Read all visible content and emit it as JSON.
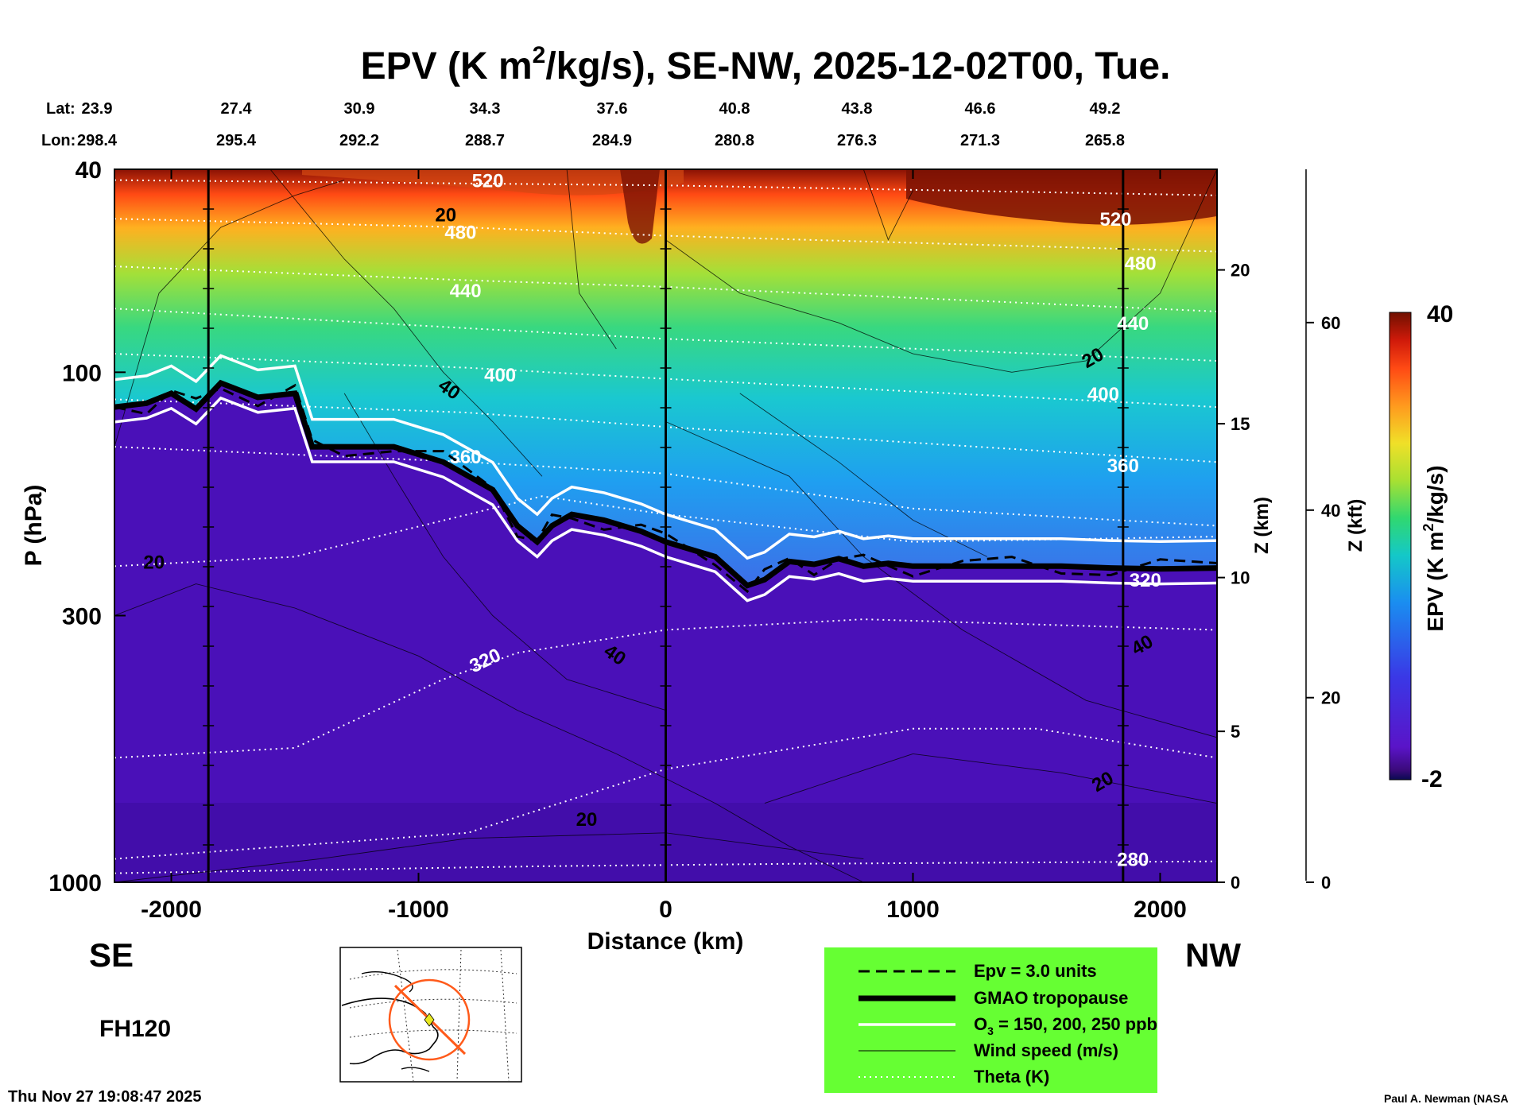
{
  "chart_data": {
    "type": "heatmap",
    "title_main": "EPV (K m",
    "title_unit_sup": "2",
    "title_rest": "/kg/s), SE-NW, 2025-12-02T00, Tue.",
    "lat_label": "Lat:",
    "lon_label": "Lon:",
    "lat_values": [
      "23.9",
      "27.4",
      "30.9",
      "34.3",
      "37.6",
      "40.8",
      "43.8",
      "46.6",
      "49.2"
    ],
    "lon_values": [
      "298.4",
      "295.4",
      "292.2",
      "288.7",
      "284.9",
      "280.8",
      "276.3",
      "271.3",
      "265.8"
    ],
    "xlabel": "Distance (km)",
    "xlim": [
      -2230,
      2230
    ],
    "x_ticks": [
      -2000,
      -1000,
      0,
      1000,
      2000
    ],
    "x_tick_labels": [
      "-2000",
      "-1000",
      "0",
      "1000",
      "2000"
    ],
    "ylabel": "P (hPa)",
    "ylim": [
      1000,
      40
    ],
    "y_ticks": [
      40,
      100,
      300,
      1000
    ],
    "y_tick_labels": [
      "40",
      "100",
      "300",
      "1000"
    ],
    "z_km_label": "Z (km)",
    "z_km_ticks": [
      "20",
      "15",
      "10",
      "5",
      "0"
    ],
    "z_km_values": [
      20,
      15,
      10,
      5,
      0
    ],
    "z_kft_label": "Z (kft)",
    "z_kft_ticks": [
      "60",
      "40",
      "20",
      "0"
    ],
    "z_kft_values": [
      60,
      40,
      20,
      0
    ],
    "vertical_sections_km": [
      -1850,
      0,
      1850
    ],
    "colorbar": {
      "label_main": "EPV (K m",
      "label_sup": "2",
      "label_rest": "/kg/s)",
      "min": -2,
      "max": 40,
      "min_label": "-2",
      "max_label": "40"
    },
    "theta_contours": [
      {
        "label": "520",
        "km": -720,
        "hpa": 42
      },
      {
        "label": "480",
        "km": -830,
        "hpa": 53
      },
      {
        "label": "440",
        "km": -810,
        "hpa": 69
      },
      {
        "label": "400",
        "km": -670,
        "hpa": 101
      },
      {
        "label": "360",
        "km": -810,
        "hpa": 146
      },
      {
        "label": "320",
        "km": -720,
        "hpa": 365
      },
      {
        "label": "520",
        "km": 1820,
        "hpa": 50
      },
      {
        "label": "480",
        "km": 1920,
        "hpa": 61
      },
      {
        "label": "440",
        "km": 1890,
        "hpa": 80
      },
      {
        "label": "400",
        "km": 1770,
        "hpa": 110
      },
      {
        "label": "360",
        "km": 1850,
        "hpa": 152
      },
      {
        "label": "320",
        "km": 1940,
        "hpa": 255
      },
      {
        "label": "280",
        "km": 1890,
        "hpa": 900
      }
    ],
    "wind_contours": [
      {
        "label": "20",
        "km": -890,
        "hpa": 49
      },
      {
        "label": "20",
        "km": -2070,
        "hpa": 235
      },
      {
        "label": "40",
        "km": -890,
        "hpa": 107
      },
      {
        "label": "40",
        "km": -220,
        "hpa": 355
      },
      {
        "label": "20",
        "km": -320,
        "hpa": 750
      },
      {
        "label": "20",
        "km": 1740,
        "hpa": 93
      },
      {
        "label": "40",
        "km": 1940,
        "hpa": 340
      },
      {
        "label": "20",
        "km": 1780,
        "hpa": 630
      }
    ],
    "legend": {
      "items": [
        "Epv = 3.0 units",
        "GMAO tropopause",
        "O3 = 150, 200, 250 ppb",
        "Wind speed (m/s)",
        "Theta (K)"
      ],
      "o3_prefix": "O",
      "o3_sub": "3",
      "o3_rest": " = 150, 200, 250 ppb",
      "background": "#66ff33"
    },
    "direction_left": "SE",
    "direction_right": "NW",
    "forecast_hour": "FH120",
    "timestamp": "Thu Nov 27 19:08:47 2025",
    "credit": "Paul A. Newman (NASA"
  },
  "colors": {
    "tropo_background": "#4a10b8",
    "accent_orange": "#ff5a1a"
  }
}
